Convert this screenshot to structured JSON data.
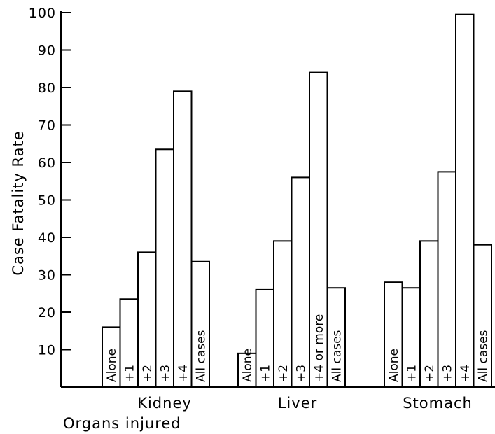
{
  "chart_data": {
    "type": "bar",
    "ylabel": "Case Fatality Rate",
    "xlabel": "Organs injured",
    "ylim": [
      0,
      100
    ],
    "yticks": [
      10,
      20,
      30,
      40,
      50,
      60,
      70,
      80,
      90,
      100
    ],
    "grid": false,
    "groups": [
      {
        "name": "Kidney",
        "bars": [
          {
            "label": "Alone",
            "value": 16
          },
          {
            "label": "+1",
            "value": 23.5
          },
          {
            "label": "+2",
            "value": 36
          },
          {
            "label": "+3",
            "value": 63.5
          },
          {
            "label": "+4",
            "value": 79
          },
          {
            "label": "All cases",
            "value": 33.5
          }
        ]
      },
      {
        "name": "Liver",
        "bars": [
          {
            "label": "Alone",
            "value": 9
          },
          {
            "label": "+1",
            "value": 26
          },
          {
            "label": "+2",
            "value": 39
          },
          {
            "label": "+3",
            "value": 56
          },
          {
            "label": "+4 or more",
            "value": 84
          },
          {
            "label": "All cases",
            "value": 26.5
          }
        ]
      },
      {
        "name": "Stomach",
        "bars": [
          {
            "label": "Alone",
            "value": 28
          },
          {
            "label": "+1",
            "value": 26.5
          },
          {
            "label": "+2",
            "value": 39
          },
          {
            "label": "+3",
            "value": 57.5
          },
          {
            "label": "+4",
            "value": 99.5
          },
          {
            "label": "All cases",
            "value": 38
          }
        ]
      }
    ]
  }
}
